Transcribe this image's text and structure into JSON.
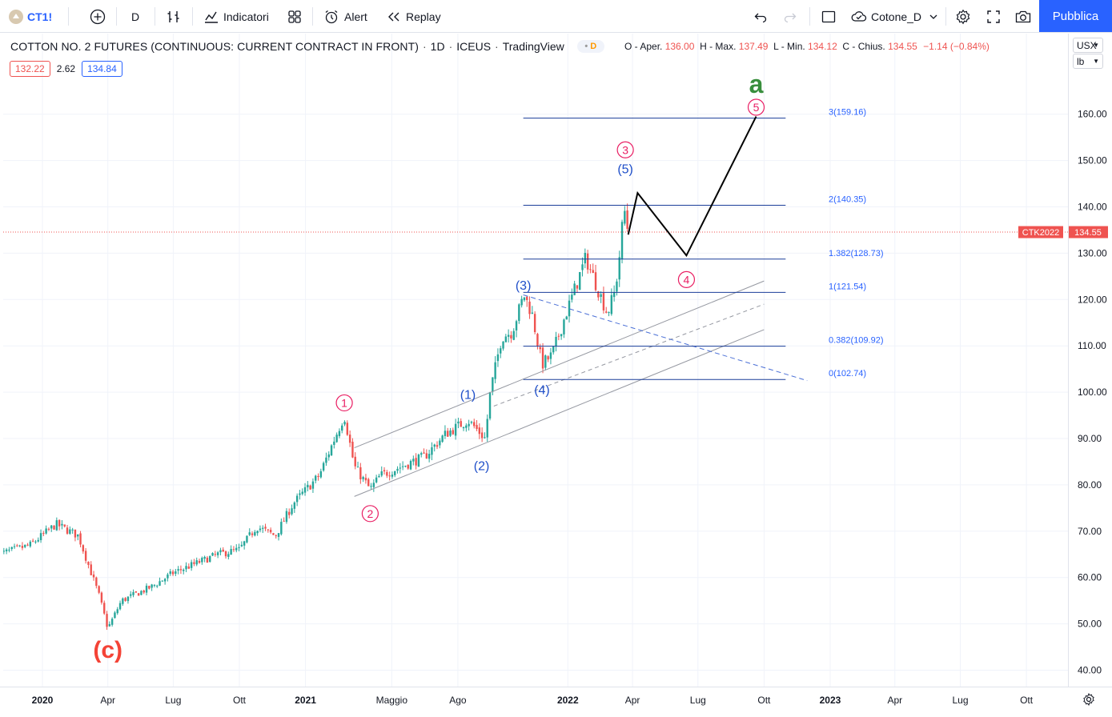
{
  "toolbar": {
    "symbol": "CT1!",
    "interval": "D",
    "indicators_label": "Indicatori",
    "alert_label": "Alert",
    "replay_label": "Replay",
    "layout_name": "Cotone_D",
    "publish_label": "Pubblica"
  },
  "legend": {
    "title": "COTTON NO. 2 FUTURES (CONTINUOUS: CURRENT CONTRACT IN FRONT)",
    "interval": "1D",
    "exchange": "ICEUS",
    "source": "TradingView",
    "badge": "D",
    "open_label": "O - Aper.",
    "open": "136.00",
    "high_label": "H - Max.",
    "high": "137.49",
    "low_label": "L - Min.",
    "low": "134.12",
    "close_label": "C - Chius.",
    "close": "134.55",
    "change": "−1.14 (−0.84%)",
    "bid": "132.22",
    "spread": "2.62",
    "ask": "134.84"
  },
  "units": {
    "currency": "USX",
    "weight": "lb"
  },
  "price_tag": {
    "label": "CTK2022",
    "value": "134.55"
  },
  "colors": {
    "up": "#26a69a",
    "down": "#ef5350",
    "fib": "#1a3d99",
    "fib_label": "#2962ff",
    "wave_primary": "#e91e63",
    "wave_minor": "#1f4fc9",
    "wave_c": "#f44336",
    "wave_a": "#388e3c",
    "accent": "#2962ff"
  },
  "chart_data": {
    "type": "candlestick",
    "symbol": "CT1!",
    "y_axis": {
      "ticks": [
        "40.00",
        "50.00",
        "60.00",
        "70.00",
        "80.00",
        "90.00",
        "100.00",
        "110.00",
        "120.00",
        "130.00",
        "140.00",
        "150.00",
        "160.00"
      ],
      "range": [
        37.3,
        170.5
      ],
      "unit": "USX/lb"
    },
    "x_axis": {
      "ticks": [
        "2020",
        "Apr",
        "Lug",
        "Ott",
        "2021",
        "Maggio",
        "Ago",
        "2022",
        "Apr",
        "Lug",
        "Ott",
        "2023",
        "Apr",
        "Lug",
        "Ott"
      ]
    },
    "price_path": [
      [
        "2019-11-01",
        65
      ],
      [
        "2019-12-15",
        67
      ],
      [
        "2020-01-20",
        71.5
      ],
      [
        "2020-02-20",
        69
      ],
      [
        "2020-03-20",
        56
      ],
      [
        "2020-04-01",
        49
      ],
      [
        "2020-04-20",
        55
      ],
      [
        "2020-06-01",
        58
      ],
      [
        "2020-07-01",
        61
      ],
      [
        "2020-08-01",
        63
      ],
      [
        "2020-09-01",
        65
      ],
      [
        "2020-10-01",
        66
      ],
      [
        "2020-10-25",
        71
      ],
      [
        "2020-11-20",
        69
      ],
      [
        "2020-12-15",
        76
      ],
      [
        "2021-01-20",
        82
      ],
      [
        "2021-02-24",
        95
      ],
      [
        "2021-03-10",
        84
      ],
      [
        "2021-04-01",
        79
      ],
      [
        "2021-04-15",
        82
      ],
      [
        "2021-05-15",
        84
      ],
      [
        "2021-06-15",
        86
      ],
      [
        "2021-07-15",
        91
      ],
      [
        "2021-08-15",
        94
      ],
      [
        "2021-09-08",
        90
      ],
      [
        "2021-09-15",
        100
      ],
      [
        "2021-10-01",
        112
      ],
      [
        "2021-10-15",
        113
      ],
      [
        "2021-11-01",
        121
      ],
      [
        "2021-11-12",
        117
      ],
      [
        "2021-11-26",
        106
      ],
      [
        "2021-12-10",
        108
      ],
      [
        "2021-12-25",
        115
      ],
      [
        "2022-01-10",
        122
      ],
      [
        "2022-01-26",
        129
      ],
      [
        "2022-02-10",
        123
      ],
      [
        "2022-02-25",
        117
      ],
      [
        "2022-03-08",
        122
      ],
      [
        "2022-03-15",
        131
      ],
      [
        "2022-03-20",
        140
      ],
      [
        "2022-03-26",
        134.55
      ]
    ],
    "fibonacci": [
      {
        "level": "0",
        "price": 102.74
      },
      {
        "level": "0.382",
        "price": 109.92
      },
      {
        "level": "1",
        "price": 121.54
      },
      {
        "level": "1.382",
        "price": 128.73
      },
      {
        "level": "2",
        "price": 140.35
      },
      {
        "level": "3",
        "price": 159.16
      }
    ],
    "last_price": 134.55,
    "projection": [
      [
        "2022-03-26",
        134
      ],
      [
        "2022-04-08",
        143
      ],
      [
        "2022-06-15",
        129.5
      ],
      [
        "2022-09-20",
        159.5
      ]
    ],
    "channel": {
      "upper": [
        [
          "2021-03-10",
          88
        ],
        [
          "2022-10-01",
          124
        ]
      ],
      "mid": [
        [
          "2021-09-20",
          97
        ],
        [
          "2022-10-01",
          119
        ]
      ],
      "lower": [
        [
          "2021-03-10",
          77.5
        ],
        [
          "2022-10-01",
          113.5
        ]
      ]
    },
    "trendline_dashed": [
      [
        "2021-10-31",
        121
      ],
      [
        "2022-11-30",
        102.5
      ]
    ],
    "wave_labels": [
      {
        "text": "(c)",
        "date": "2020-04-01",
        "price": 44.4,
        "style": "wave_c"
      },
      {
        "text": "1",
        "date": "2021-02-24",
        "price": 97.7,
        "style": "circled"
      },
      {
        "text": "2",
        "date": "2021-04-01",
        "price": 73.8,
        "style": "circled"
      },
      {
        "text": "3",
        "date": "2022-03-22",
        "price": 152.3,
        "style": "circled"
      },
      {
        "text": "4",
        "date": "2022-06-15",
        "price": 124.3,
        "style": "circled"
      },
      {
        "text": "5",
        "date": "2022-09-20",
        "price": 161.5,
        "style": "circled"
      },
      {
        "text": "a",
        "date": "2022-09-20",
        "price": 166.3,
        "style": "wave_a"
      },
      {
        "text": "(1)",
        "date": "2021-08-15",
        "price": 99.6,
        "style": "minor"
      },
      {
        "text": "(2)",
        "date": "2021-09-03",
        "price": 84.2,
        "style": "minor"
      },
      {
        "text": "(3)",
        "date": "2021-10-31",
        "price": 123.2,
        "style": "minor"
      },
      {
        "text": "(4)",
        "date": "2021-11-26",
        "price": 100.6,
        "style": "minor"
      },
      {
        "text": "(5)",
        "date": "2022-03-22",
        "price": 148.3,
        "style": "minor"
      }
    ]
  }
}
